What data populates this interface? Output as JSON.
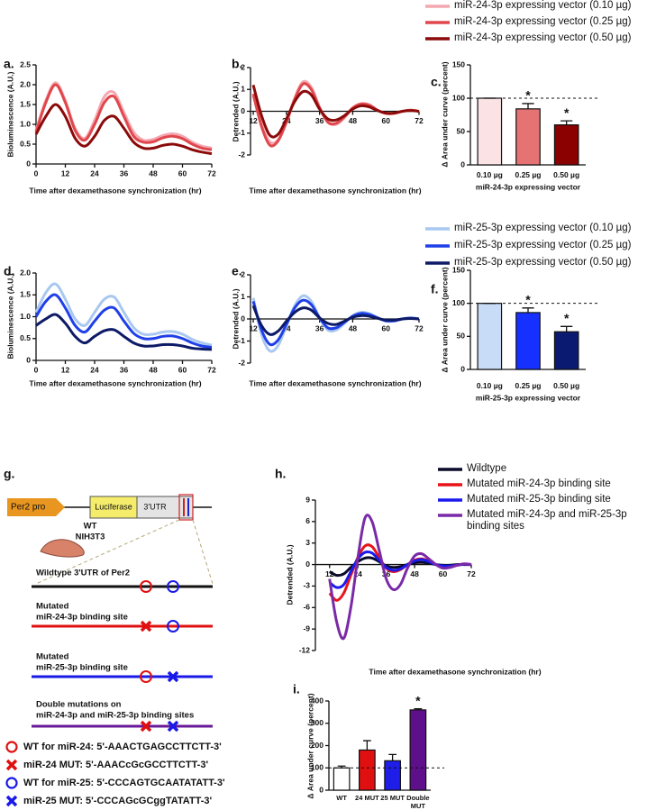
{
  "chart_data": [
    {
      "type": "line",
      "panel": "a.",
      "y_label": "Bioluminescence (A.U.)",
      "x_label": "Time after dexamethasone synchronization (hr)",
      "x": [
        0,
        4,
        8,
        12,
        16,
        20,
        24,
        28,
        32,
        36,
        40,
        44,
        48,
        52,
        56,
        60,
        64,
        68,
        72
      ],
      "xlim": [
        0,
        72
      ],
      "xticks": [
        0,
        12,
        24,
        36,
        48,
        60,
        72
      ],
      "ylim": [
        0,
        2.5
      ],
      "yticks": [
        0,
        0.5,
        {
          "value": 1,
          "label": "1.0"
        },
        1.5,
        {
          "value": 2,
          "label": "2.0"
        },
        2.5
      ],
      "legend": true,
      "series": [
        {
          "name": "miR-24-3p expressing vector (0.10 µg)",
          "color": "#f4a7b0",
          "values": [
            0.85,
            1.6,
            2.05,
            1.6,
            0.9,
            0.65,
            1.1,
            1.7,
            1.8,
            1.3,
            0.8,
            0.6,
            0.62,
            0.72,
            0.76,
            0.7,
            0.55,
            0.45,
            0.4
          ]
        },
        {
          "name": "miR-24-3p expressing vector (0.25 µg)",
          "color": "#e0474c",
          "values": [
            0.8,
            1.55,
            2.0,
            1.55,
            0.85,
            0.6,
            1.0,
            1.55,
            1.7,
            1.2,
            0.7,
            0.55,
            0.56,
            0.66,
            0.7,
            0.64,
            0.5,
            0.4,
            0.36
          ]
        },
        {
          "name": "miR-24-3p expressing vector (0.50 µg)",
          "color": "#8b0a0a",
          "values": [
            0.75,
            1.2,
            1.5,
            1.2,
            0.65,
            0.45,
            0.7,
            1.1,
            1.2,
            0.9,
            0.55,
            0.4,
            0.4,
            0.47,
            0.5,
            0.45,
            0.36,
            0.3,
            0.26
          ]
        }
      ]
    },
    {
      "type": "line",
      "panel": "b.",
      "y_label": "Detrended (A.U.)",
      "x_label": "Time after dexamethasone synchronization (hr)",
      "axis_at_zero": true,
      "x": [
        12,
        15,
        18,
        21,
        24,
        27,
        30,
        33,
        36,
        39,
        42,
        45,
        48,
        51,
        54,
        57,
        60,
        63,
        66,
        69,
        72
      ],
      "xlim": [
        11,
        72
      ],
      "xticks": [
        12,
        24,
        36,
        48,
        60,
        72
      ],
      "ylim": [
        -2,
        2
      ],
      "yticks": [
        -2,
        -1,
        0,
        1,
        2
      ],
      "series": [
        {
          "color": "#f4a7b0",
          "values": [
            0.7,
            -0.6,
            -1.4,
            -1.3,
            -0.5,
            0.6,
            1.35,
            1.1,
            0.2,
            -0.5,
            -0.6,
            -0.3,
            0.15,
            0.35,
            0.3,
            0.05,
            -0.1,
            -0.1,
            0,
            0.05,
            0
          ]
        },
        {
          "color": "#e0474c",
          "values": [
            0.8,
            -0.7,
            -1.55,
            -1.35,
            -0.5,
            0.55,
            1.25,
            1.0,
            0.15,
            -0.5,
            -0.55,
            -0.25,
            0.15,
            0.33,
            0.28,
            0.05,
            -0.1,
            -0.1,
            0,
            0.05,
            0
          ]
        },
        {
          "color": "#8b0a0a",
          "values": [
            1.2,
            -0.2,
            -1.1,
            -1.05,
            -0.35,
            0.45,
            0.9,
            0.75,
            0.1,
            -0.35,
            -0.4,
            -0.2,
            0.1,
            0.25,
            0.2,
            0.03,
            -0.08,
            -0.08,
            0,
            0.03,
            0
          ]
        }
      ]
    },
    {
      "type": "bar",
      "panel": "c.",
      "y_label": "Δ Area under curve (percent)",
      "x_label": "miR-24-3p expressing vector",
      "categories": [
        "0.10 µg",
        "0.25 µg",
        "0.50 µg"
      ],
      "values": [
        100,
        84,
        60
      ],
      "errors": [
        0,
        8,
        6
      ],
      "colors": [
        "#fbe3e5",
        "#e57373",
        "#8b0000"
      ],
      "significance": [
        null,
        "*",
        "*"
      ],
      "ref_line": 100,
      "ylim": [
        0,
        150
      ],
      "yticks": [
        0,
        50,
        100,
        150
      ]
    },
    {
      "type": "line",
      "panel": "d.",
      "y_label": "Bioluminescence (A.U.)",
      "x_label": "Time after dexamethasone synchronization (hr)",
      "x": [
        0,
        4,
        8,
        12,
        16,
        20,
        24,
        28,
        32,
        36,
        40,
        44,
        48,
        52,
        56,
        60,
        64,
        68,
        72
      ],
      "xlim": [
        0,
        72
      ],
      "xticks": [
        0,
        12,
        24,
        36,
        48,
        60,
        72
      ],
      "ylim": [
        0,
        2
      ],
      "yticks": [
        0,
        0.5,
        {
          "value": 1,
          "label": "1.0"
        },
        1.5,
        {
          "value": 2,
          "label": "2.0"
        }
      ],
      "legend": true,
      "series": [
        {
          "name": "miR-25-3p expressing vector (0.10 µg)",
          "color": "#a9c8f0",
          "values": [
            1.1,
            1.55,
            1.75,
            1.4,
            0.95,
            0.8,
            1.1,
            1.4,
            1.45,
            1.1,
            0.75,
            0.6,
            0.6,
            0.65,
            0.66,
            0.6,
            0.48,
            0.4,
            0.35
          ]
        },
        {
          "name": "miR-25-3p expressing vector (0.25 µg)",
          "color": "#1f3fe8",
          "values": [
            1.0,
            1.35,
            1.5,
            1.2,
            0.8,
            0.65,
            0.9,
            1.15,
            1.2,
            0.9,
            0.62,
            0.5,
            0.5,
            0.55,
            0.56,
            0.5,
            0.4,
            0.33,
            0.3
          ]
        },
        {
          "name": "miR-25-3p expressing vector (0.50 µg)",
          "color": "#0d1a66",
          "values": [
            0.8,
            0.95,
            1.05,
            0.85,
            0.55,
            0.4,
            0.55,
            0.68,
            0.7,
            0.55,
            0.4,
            0.33,
            0.33,
            0.36,
            0.36,
            0.33,
            0.28,
            0.26,
            0.25
          ]
        }
      ]
    },
    {
      "type": "line",
      "panel": "e.",
      "y_label": "Detrended (A.U.)",
      "x_label": "Time after dexamethasone synchronization (hr)",
      "axis_at_zero": true,
      "x": [
        12,
        15,
        18,
        21,
        24,
        27,
        30,
        33,
        36,
        39,
        42,
        45,
        48,
        51,
        54,
        57,
        60,
        63,
        66,
        69,
        72
      ],
      "xlim": [
        11,
        72
      ],
      "xticks": [
        12,
        24,
        36,
        48,
        60,
        72
      ],
      "ylim": [
        -2,
        2
      ],
      "yticks": [
        -2,
        -1,
        0,
        1,
        2
      ],
      "series": [
        {
          "color": "#a9c8f0",
          "values": [
            0.95,
            -0.7,
            -1.45,
            -1.2,
            -0.3,
            0.6,
            1.05,
            0.8,
            0.05,
            -0.5,
            -0.5,
            -0.2,
            0.15,
            0.3,
            0.25,
            0.05,
            -0.1,
            -0.1,
            0,
            0.05,
            0
          ]
        },
        {
          "color": "#1f3fe8",
          "values": [
            0.8,
            -0.5,
            -1.15,
            -0.95,
            -0.25,
            0.5,
            0.85,
            0.65,
            0.05,
            -0.4,
            -0.4,
            -0.15,
            0.12,
            0.25,
            0.2,
            0.05,
            -0.08,
            -0.08,
            0,
            0.04,
            0
          ]
        },
        {
          "color": "#0d1a66",
          "values": [
            0.6,
            -0.3,
            -0.7,
            -0.55,
            -0.1,
            0.3,
            0.5,
            0.4,
            0.05,
            -0.2,
            -0.25,
            -0.1,
            0.08,
            0.15,
            0.12,
            0.03,
            -0.05,
            -0.05,
            0,
            0.02,
            0
          ]
        }
      ]
    },
    {
      "type": "bar",
      "panel": "f.",
      "y_label": "Δ Area under curve (percent)",
      "x_label": "miR-25-3p expressing vector",
      "categories": [
        "0.10 µg",
        "0.25 µg",
        "0.50 µg"
      ],
      "values": [
        100,
        86,
        57
      ],
      "errors": [
        0,
        7,
        8
      ],
      "colors": [
        "#c9dcf7",
        "#1530ff",
        "#0a1a70"
      ],
      "significance": [
        null,
        "*",
        "*"
      ],
      "ref_line": 100,
      "ylim": [
        0,
        150
      ],
      "yticks": [
        0,
        50,
        100,
        150
      ]
    },
    {
      "type": "line",
      "panel": "h.",
      "y_label": "Detrended (A.U.)",
      "x_label": "Time after dexamethasone synchronization (hr)",
      "axis_at_zero": true,
      "x": [
        12,
        15,
        18,
        21,
        24,
        27,
        30,
        33,
        36,
        39,
        42,
        45,
        48,
        51,
        54,
        57,
        60,
        63,
        66,
        69,
        72
      ],
      "xlim": [
        6,
        72
      ],
      "xticks": [
        12,
        24,
        36,
        48,
        60,
        72
      ],
      "ylim": [
        -12,
        9
      ],
      "yticks": [
        -12,
        -9,
        -6,
        -3,
        0,
        3,
        6,
        9
      ],
      "legend": true,
      "series": [
        {
          "name": "Wildtype",
          "color": "#0a0a2a",
          "values": [
            -1,
            -1.5,
            -1.3,
            -0.4,
            0.4,
            0.9,
            0.9,
            0.4,
            -0.2,
            -0.4,
            -0.3,
            0,
            0.25,
            0.3,
            0.2,
            0,
            -0.1,
            -0.1,
            0,
            0,
            0
          ]
        },
        {
          "name": "Mutated miR-24-3p binding site",
          "color": "#e8141a",
          "values": [
            -4,
            -5,
            -4,
            -1.5,
            1,
            2.6,
            2.5,
            1,
            -0.5,
            -1,
            -0.7,
            0,
            0.6,
            0.8,
            0.5,
            0,
            -0.3,
            -0.3,
            -0.1,
            0.05,
            0
          ]
        },
        {
          "name": "Mutated miR-25-3p binding site",
          "color": "#1a1aee",
          "values": [
            -2.5,
            -3.2,
            -2.8,
            -1,
            0.8,
            1.7,
            1.6,
            0.6,
            -0.4,
            -0.8,
            -0.6,
            0,
            0.5,
            0.7,
            0.4,
            0,
            -0.2,
            -0.2,
            -0.1,
            0.05,
            0
          ]
        },
        {
          "name": "Mutated miR-24-3p and miR-25-3p binding sites",
          "color": "#7a2aa8",
          "values": [
            -2,
            -8,
            -10.3,
            -6,
            1,
            6.5,
            6,
            2,
            -2,
            -3.5,
            -2.8,
            -0.5,
            1.2,
            1.5,
            0.8,
            0,
            -0.5,
            -0.4,
            -0.1,
            0.1,
            0
          ]
        }
      ]
    },
    {
      "type": "bar",
      "panel": "i.",
      "y_label": "Δ Area under curve (percent)",
      "categories": [
        "WT",
        "24 MUT",
        "25 MUT",
        "Double MUT"
      ],
      "values": [
        100,
        180,
        132,
        360
      ],
      "errors": [
        8,
        42,
        28,
        5
      ],
      "colors": [
        "#ffffff",
        "#e01010",
        "#1e1ee8",
        "#5e0f8a"
      ],
      "significance": [
        null,
        null,
        null,
        "*"
      ],
      "ref_line": 100,
      "ylim": [
        0,
        400
      ],
      "yticks": [
        0,
        100,
        200,
        300,
        400
      ]
    }
  ],
  "diagram": {
    "panel": "g.",
    "construct": {
      "promoter": "Per2 pro",
      "reporter": "Luciferase",
      "utr": "3'UTR"
    },
    "cell": [
      "WT",
      "NIH3T3"
    ],
    "rows": [
      [
        "Wildtype 3'UTR of Per2"
      ],
      [
        "Mutated",
        "miR-24-3p binding site"
      ],
      [
        "Mutated",
        "miR-25-3p binding site"
      ],
      [
        "Double mutations on",
        "miR-24-3p and miR-25-3p binding sites"
      ]
    ],
    "key": [
      "WT for miR-24: 5'-AAACTGAGCCTTCTT-3'",
      "miR-24 MUT: 5'-AAACcGcGCCTTCTT-3'",
      "WT for miR-25: 5'-CCCAGTGCAATATATT-3'",
      "miR-25 MUT: 5'-CCCAGcGCggTATATT-3'"
    ]
  }
}
